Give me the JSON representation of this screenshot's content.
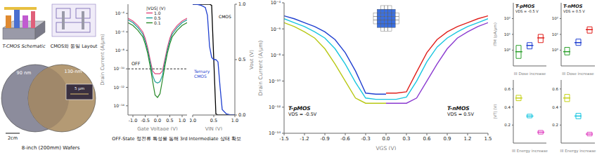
{
  "figure": {
    "schematic_label": "T-CMOS Schematic",
    "layout_label": "CMOS와 동일 Layout",
    "wafer_labels": [
      "90 nm",
      "130-nm"
    ],
    "inset_scale": "5 μm",
    "scale_bar": "2cm",
    "wafer_caption": "8-inch (200mm) Wafers",
    "caption": "OFF-State 정전류 특성을 통해 3rd Intermediate 상태 확보"
  },
  "chart_data": [
    {
      "type": "line",
      "log": "y",
      "x_label": "Gate Voltage (V)",
      "y_label": "Drain Current (A/μm)",
      "x": [
        -1.2,
        -1.0,
        -0.8,
        -0.6,
        -0.5,
        -0.4,
        -0.3,
        -0.2,
        -0.1,
        0,
        0.1,
        0.2,
        0.3,
        0.4,
        0.5,
        0.6,
        0.8,
        1.0,
        1.2
      ],
      "xlim": [
        -1.2,
        1.2
      ],
      "xticks": [
        {
          "value": -1,
          "label": "-1.0"
        },
        -0.5,
        {
          "value": 0,
          "label": "0.0"
        },
        0.5,
        {
          "value": 1,
          "label": "1.0"
        }
      ],
      "ylim": [
        1e-15,
        0.001
      ],
      "yticks": [
        {
          "value": 1e-14,
          "label": "10⁻¹⁴"
        },
        {
          "value": 1e-12,
          "label": "10⁻¹²"
        },
        {
          "value": 1e-10,
          "label": "10⁻¹⁰"
        },
        {
          "value": 1e-08,
          "label": "10⁻⁸"
        },
        {
          "value": 1e-06,
          "label": "10⁻⁶"
        },
        {
          "value": 0.0001,
          "label": "10⁻⁴"
        }
      ],
      "legend": "top",
      "legend_title": "|VDS| (V)",
      "series": [
        {
          "name": "1.0",
          "color": "#e0457b",
          "values": [
            3e-05,
            1.5e-05,
            5e-06,
            1e-06,
            2e-07,
            2e-08,
            1e-09,
            6e-11,
            3e-11,
            3e-11,
            3e-11,
            6e-11,
            1e-09,
            2e-08,
            2e-07,
            1e-06,
            5e-06,
            1.5e-05,
            3e-05
          ]
        },
        {
          "name": "0.5",
          "color": "#1f9e9a",
          "values": [
            2e-05,
            1e-05,
            3e-06,
            6e-07,
            1e-07,
            1e-08,
            5e-10,
            2e-11,
            4e-12,
            3e-12,
            4e-12,
            2e-11,
            5e-10,
            1e-08,
            1e-07,
            6e-07,
            3e-06,
            1e-05,
            2e-05
          ]
        },
        {
          "name": "0.1",
          "color": "#2a8a2a",
          "values": [
            1e-05,
            5e-06,
            1.5e-06,
            3e-07,
            5e-08,
            5e-09,
            2e-10,
            5e-12,
            1.5e-13,
            8e-14,
            2e-13,
            6e-12,
            2e-10,
            5e-09,
            5e-08,
            3e-07,
            1.5e-06,
            5e-06,
            1e-05
          ]
        }
      ],
      "annotations": [
        "OFF"
      ],
      "off_level": 1e-10
    },
    {
      "type": "line",
      "x_label": "VIN (V)",
      "y_label": "Vout (V)",
      "x": [
        0,
        0.1,
        0.2,
        0.3,
        0.35,
        0.4,
        0.45,
        0.5,
        0.55,
        0.6,
        0.65,
        0.7,
        0.8,
        0.9,
        1.0
      ],
      "xlim": [
        0,
        1
      ],
      "xticks": [
        {
          "value": 0,
          "label": "0.0"
        },
        0.5,
        {
          "value": 1,
          "label": "1.0"
        }
      ],
      "ylim": [
        0,
        1
      ],
      "yticks": [
        {
          "value": 0,
          "label": "0.0"
        },
        0.5,
        {
          "value": 1,
          "label": "1.0"
        }
      ],
      "series": [
        {
          "name": "CMOS",
          "color": "#000000",
          "values": [
            1,
            1,
            1,
            1,
            1,
            1,
            0.99,
            0.5,
            0.01,
            0,
            0,
            0,
            0,
            0,
            0
          ]
        },
        {
          "name": "Ternary CMOS",
          "color": "#1f3fd0",
          "values": [
            1,
            1,
            0.99,
            0.97,
            0.9,
            0.62,
            0.52,
            0.5,
            0.5,
            0.48,
            0.25,
            0.05,
            0.01,
            0,
            0
          ]
        }
      ]
    },
    {
      "type": "line",
      "log": "y",
      "x_label": "VGS (V)",
      "y_label": "Drain Current (A/μm)",
      "x": [
        -1.5,
        -1.35,
        -1.2,
        -1.05,
        -0.9,
        -0.75,
        -0.6,
        -0.45,
        -0.3,
        -0.15,
        0,
        0.15,
        0.3,
        0.45,
        0.6,
        0.75,
        0.9,
        1.05,
        1.2,
        1.35,
        1.5
      ],
      "xlim": [
        -1.5,
        1.5
      ],
      "xticks": [
        -1.5,
        -1.2,
        -0.9,
        -0.6,
        -0.3,
        {
          "value": 0,
          "label": "0.0"
        },
        0.3,
        0.6,
        0.9,
        1.2,
        1.5
      ],
      "ylim": [
        1e-14,
        0.0001
      ],
      "yticks": [
        {
          "value": 1e-14,
          "label": "10⁻¹⁴"
        },
        {
          "value": 1e-12,
          "label": "10⁻¹²"
        },
        {
          "value": 1e-10,
          "label": "10⁻¹⁰"
        },
        {
          "value": 1e-08,
          "label": "10⁻⁸"
        },
        {
          "value": 1e-06,
          "label": "10⁻⁶"
        },
        {
          "value": 0.0001,
          "label": "10⁻⁴"
        }
      ],
      "series": [
        {
          "color": "#b8c814",
          "values": [
            3e-06,
            1.5e-06,
            6e-07,
            2e-07,
            3e-08,
            2e-09,
            1e-10,
            5e-12,
            2e-12,
            2e-12,
            2e-12,
            null,
            null,
            null,
            null,
            null,
            null,
            null,
            null,
            null,
            null
          ]
        },
        {
          "color": "#19c6e0",
          "values": [
            6e-06,
            3e-06,
            1.5e-06,
            6e-07,
            2e-07,
            3e-08,
            2e-09,
            8e-11,
            5e-12,
            4e-12,
            4e-12,
            null,
            null,
            null,
            null,
            null,
            null,
            null,
            null,
            null,
            null
          ]
        },
        {
          "color": "#1f3fd0",
          "values": [
            1e-05,
            6e-06,
            3e-06,
            1.5e-06,
            6e-07,
            1.5e-07,
            1.5e-08,
            6e-10,
            1.2e-11,
            1e-11,
            1e-11,
            null,
            null,
            null,
            null,
            null,
            null,
            null,
            null,
            null,
            null
          ]
        },
        {
          "color": "#e0201c",
          "values": [
            null,
            null,
            null,
            null,
            null,
            null,
            null,
            null,
            null,
            null,
            1.2e-11,
            1.2e-11,
            1.5e-11,
            5e-10,
            1.5e-08,
            1.5e-07,
            6e-07,
            1.5e-06,
            3e-06,
            6e-06,
            1e-05
          ]
        },
        {
          "color": "#19c6e0",
          "values": [
            null,
            null,
            null,
            null,
            null,
            null,
            null,
            null,
            null,
            null,
            4e-12,
            4e-12,
            6e-12,
            1e-10,
            3e-09,
            4e-08,
            2e-07,
            6e-07,
            1.5e-06,
            3e-06,
            6e-06
          ]
        },
        {
          "color": "#8a3ad0",
          "values": [
            null,
            null,
            null,
            null,
            null,
            null,
            null,
            null,
            null,
            null,
            2e-12,
            2e-12,
            2e-12,
            5e-12,
            1e-10,
            2e-09,
            3e-08,
            2e-07,
            6e-07,
            1.5e-06,
            3e-06
          ]
        }
      ],
      "annotations": [
        "T-pMOS",
        "VDS = -0.5V",
        "T-nMOS",
        "VDS = 0.5V"
      ]
    },
    {
      "type": "box",
      "log": "y",
      "title": "T-pMOS",
      "annotations": [
        "VDS = -0.5 V"
      ],
      "x_label": "III Dose increase",
      "y_label": "ITM (pA/μm)",
      "tick_labels": "y",
      "categories": [
        null,
        null,
        null
      ],
      "values": [
        0.8,
        2,
        6
      ],
      "min": [
        0.3,
        1.2,
        3
      ],
      "max": [
        2,
        3,
        10
      ],
      "colors": [
        "#2ca02c",
        "#1f3fd0",
        "#e0201c"
      ],
      "ylim": [
        0.1,
        1000
      ],
      "yticks": [
        {
          "value": 1,
          "label": "10⁰"
        },
        {
          "value": 10,
          "label": "10¹"
        },
        {
          "value": 100,
          "label": "10²"
        }
      ]
    },
    {
      "type": "box",
      "log": "y",
      "title": "T-nMOS",
      "annotations": [
        "VDS = 0.5 V"
      ],
      "x_label": "III Dose increase",
      "tick_labels": "y",
      "categories": [
        null,
        null,
        null
      ],
      "values": [
        0.8,
        3,
        20
      ],
      "min": [
        0.5,
        2,
        12
      ],
      "max": [
        1.5,
        5,
        30
      ],
      "colors": [
        "#2ca02c",
        "#1f3fd0",
        "#e0201c"
      ],
      "ylim": [
        0.1,
        1000
      ],
      "yticks": [
        {
          "value": 1,
          "label": "10⁰"
        },
        {
          "value": 10,
          "label": "10¹"
        },
        {
          "value": 100,
          "label": "10²"
        }
      ]
    },
    {
      "type": "box",
      "x_label": "III Energy increase",
      "y_label": "|VT| (V)",
      "tick_labels": "y",
      "categories": [
        null,
        null,
        null
      ],
      "values": [
        0.5,
        0.3,
        0.12
      ],
      "min": [
        0.47,
        0.28,
        0.1
      ],
      "max": [
        0.53,
        0.32,
        0.14
      ],
      "colors": [
        "#c6d21a",
        "#19c6e0",
        "#e040c0"
      ],
      "ylim": [
        0,
        0.7
      ],
      "yticks": [
        0.2,
        0.4,
        0.6
      ]
    },
    {
      "type": "box",
      "x_label": "III Energy increase",
      "tick_labels": "y",
      "categories": [
        null,
        null,
        null
      ],
      "values": [
        0.5,
        0.3,
        0.1
      ],
      "min": [
        0.46,
        0.27,
        0.08
      ],
      "max": [
        0.54,
        0.33,
        0.12
      ],
      "colors": [
        "#c6d21a",
        "#19c6e0",
        "#e040c0"
      ],
      "ylim": [
        0,
        0.7
      ],
      "yticks": [
        0.2,
        0.4,
        0.6
      ]
    }
  ]
}
